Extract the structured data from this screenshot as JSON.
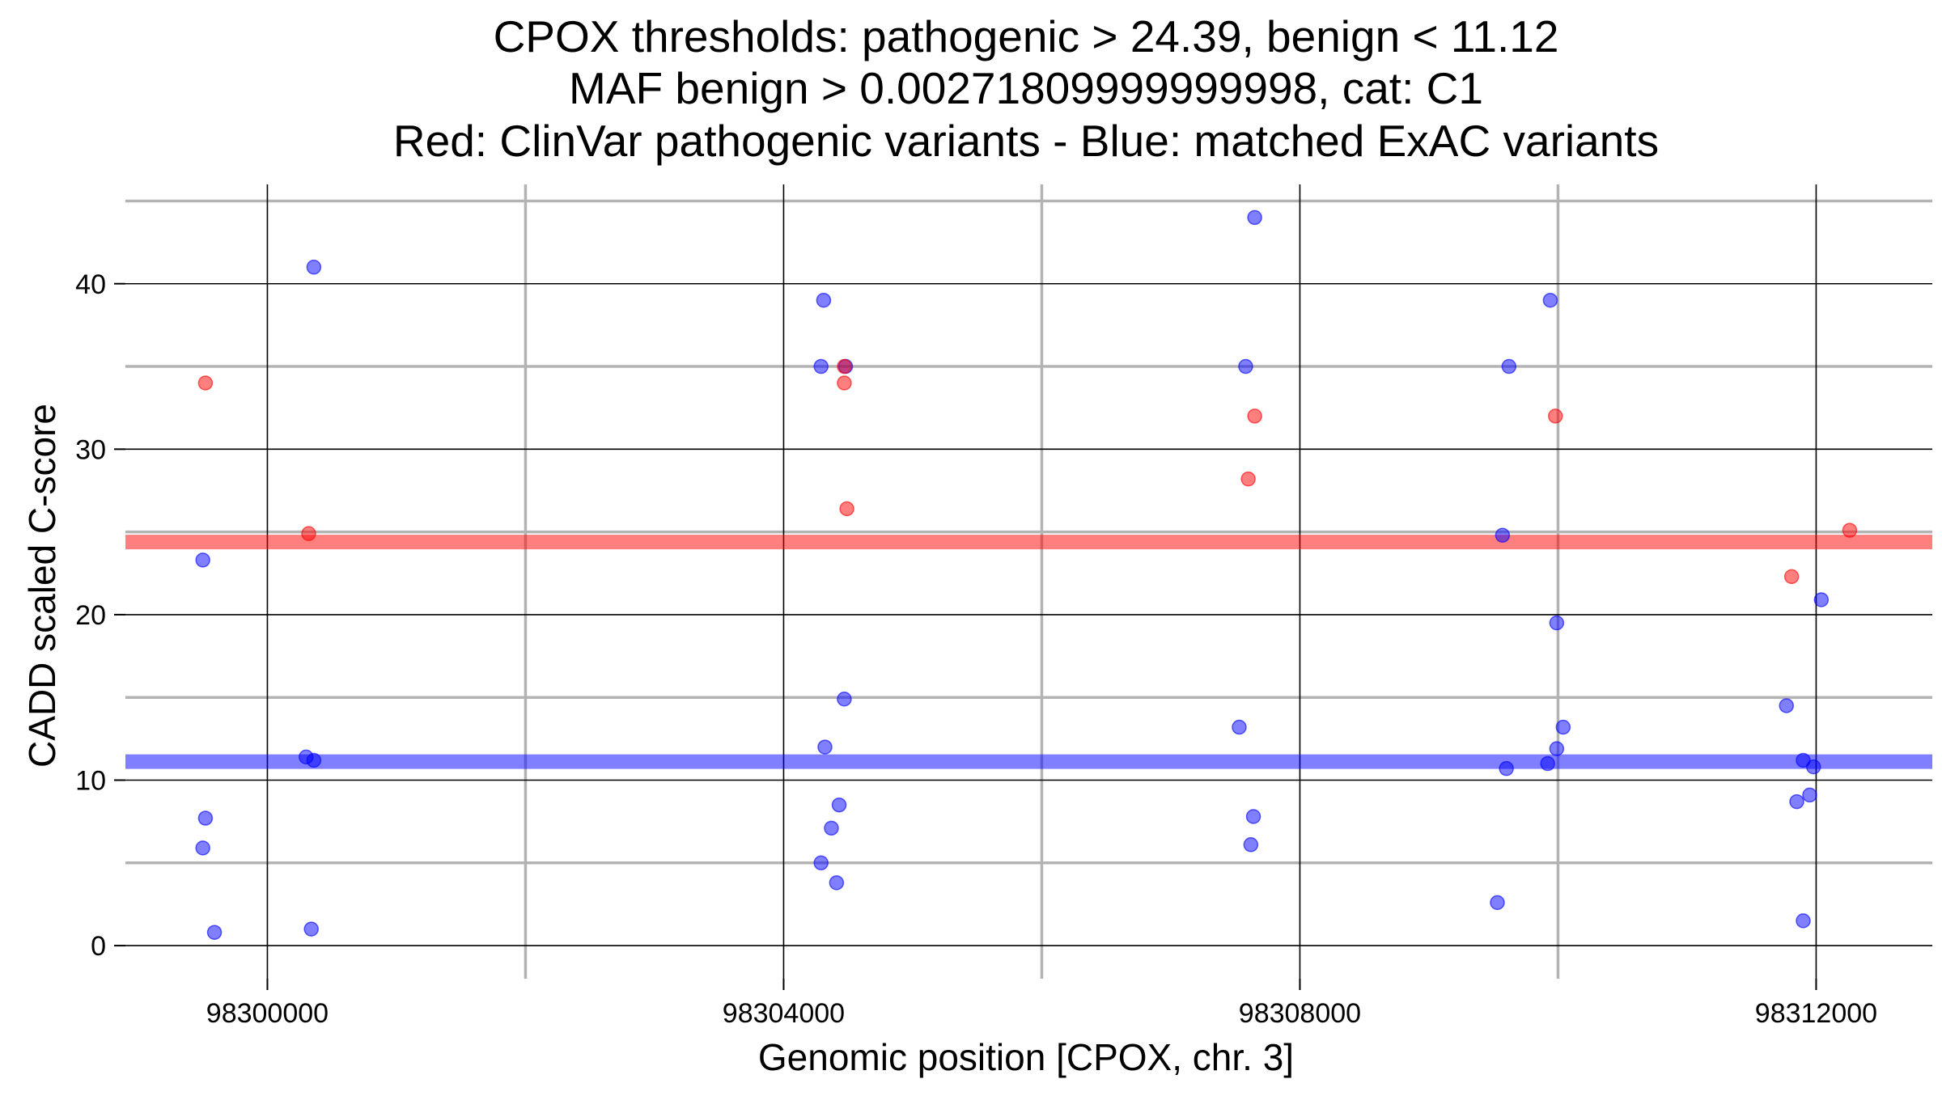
{
  "chart_data": {
    "type": "scatter",
    "title_lines": [
      "CPOX thresholds: pathogenic > 24.39, benign < 11.12",
      "MAF benign > 0.00271809999999998, cat: C1",
      "Red: ClinVar pathogenic variants - Blue: matched ExAC variants"
    ],
    "xlabel": "Genomic position [CPOX, chr. 3]",
    "ylabel": "CADD scaled C-score",
    "xlim": [
      98298900,
      98312900
    ],
    "ylim": [
      -2,
      46
    ],
    "x_ticks": [
      98300000,
      98304000,
      98308000,
      98312000
    ],
    "x_tick_labels": [
      "98300000",
      "98304000",
      "98308000",
      "98312000"
    ],
    "x_minor_ticks": [
      98302000,
      98306000,
      98310000
    ],
    "y_ticks": [
      0,
      10,
      20,
      30,
      40
    ],
    "y_tick_labels": [
      "0",
      "10",
      "20",
      "30",
      "40"
    ],
    "y_minor_ticks": [
      5,
      15,
      25,
      35,
      45
    ],
    "grid": true,
    "thresholds": [
      {
        "name": "pathogenic",
        "value": 24.39,
        "color": "#ff0000"
      },
      {
        "name": "benign",
        "value": 11.12,
        "color": "#0000ff"
      }
    ],
    "series": [
      {
        "color": "#ff0000",
        "points": [
          [
            98299520,
            34
          ],
          [
            98300320,
            24.9
          ],
          [
            98304470,
            35
          ],
          [
            98304470,
            34
          ],
          [
            98304490,
            26.4
          ],
          [
            98307600,
            28.2
          ],
          [
            98307650,
            32
          ],
          [
            98309980,
            32
          ],
          [
            98311810,
            22.3
          ],
          [
            98312260,
            25.1
          ]
        ]
      },
      {
        "color": "#0000ff",
        "points": [
          [
            98299500,
            23.3
          ],
          [
            98299520,
            7.7
          ],
          [
            98299500,
            5.9
          ],
          [
            98299590,
            0.8
          ],
          [
            98300360,
            41
          ],
          [
            98300300,
            11.4
          ],
          [
            98300360,
            11.2
          ],
          [
            98300340,
            1
          ],
          [
            98304310,
            39
          ],
          [
            98304290,
            35
          ],
          [
            98304480,
            35
          ],
          [
            98304470,
            14.9
          ],
          [
            98304320,
            12
          ],
          [
            98304430,
            8.5
          ],
          [
            98304370,
            7.1
          ],
          [
            98304290,
            5
          ],
          [
            98304410,
            3.8
          ],
          [
            98307650,
            44
          ],
          [
            98307580,
            35
          ],
          [
            98307530,
            13.2
          ],
          [
            98307640,
            7.8
          ],
          [
            98307620,
            6.1
          ],
          [
            98309940,
            39
          ],
          [
            98309620,
            35
          ],
          [
            98309570,
            24.8
          ],
          [
            98309990,
            19.5
          ],
          [
            98310040,
            13.2
          ],
          [
            98309990,
            11.9
          ],
          [
            98309600,
            10.7
          ],
          [
            98309920,
            11
          ],
          [
            98309530,
            2.6
          ],
          [
            98312040,
            20.9
          ],
          [
            98311770,
            14.5
          ],
          [
            98311900,
            11.2
          ],
          [
            98311980,
            10.8
          ],
          [
            98311850,
            8.7
          ],
          [
            98311950,
            9.1
          ],
          [
            98311900,
            1.5
          ]
        ]
      }
    ]
  }
}
